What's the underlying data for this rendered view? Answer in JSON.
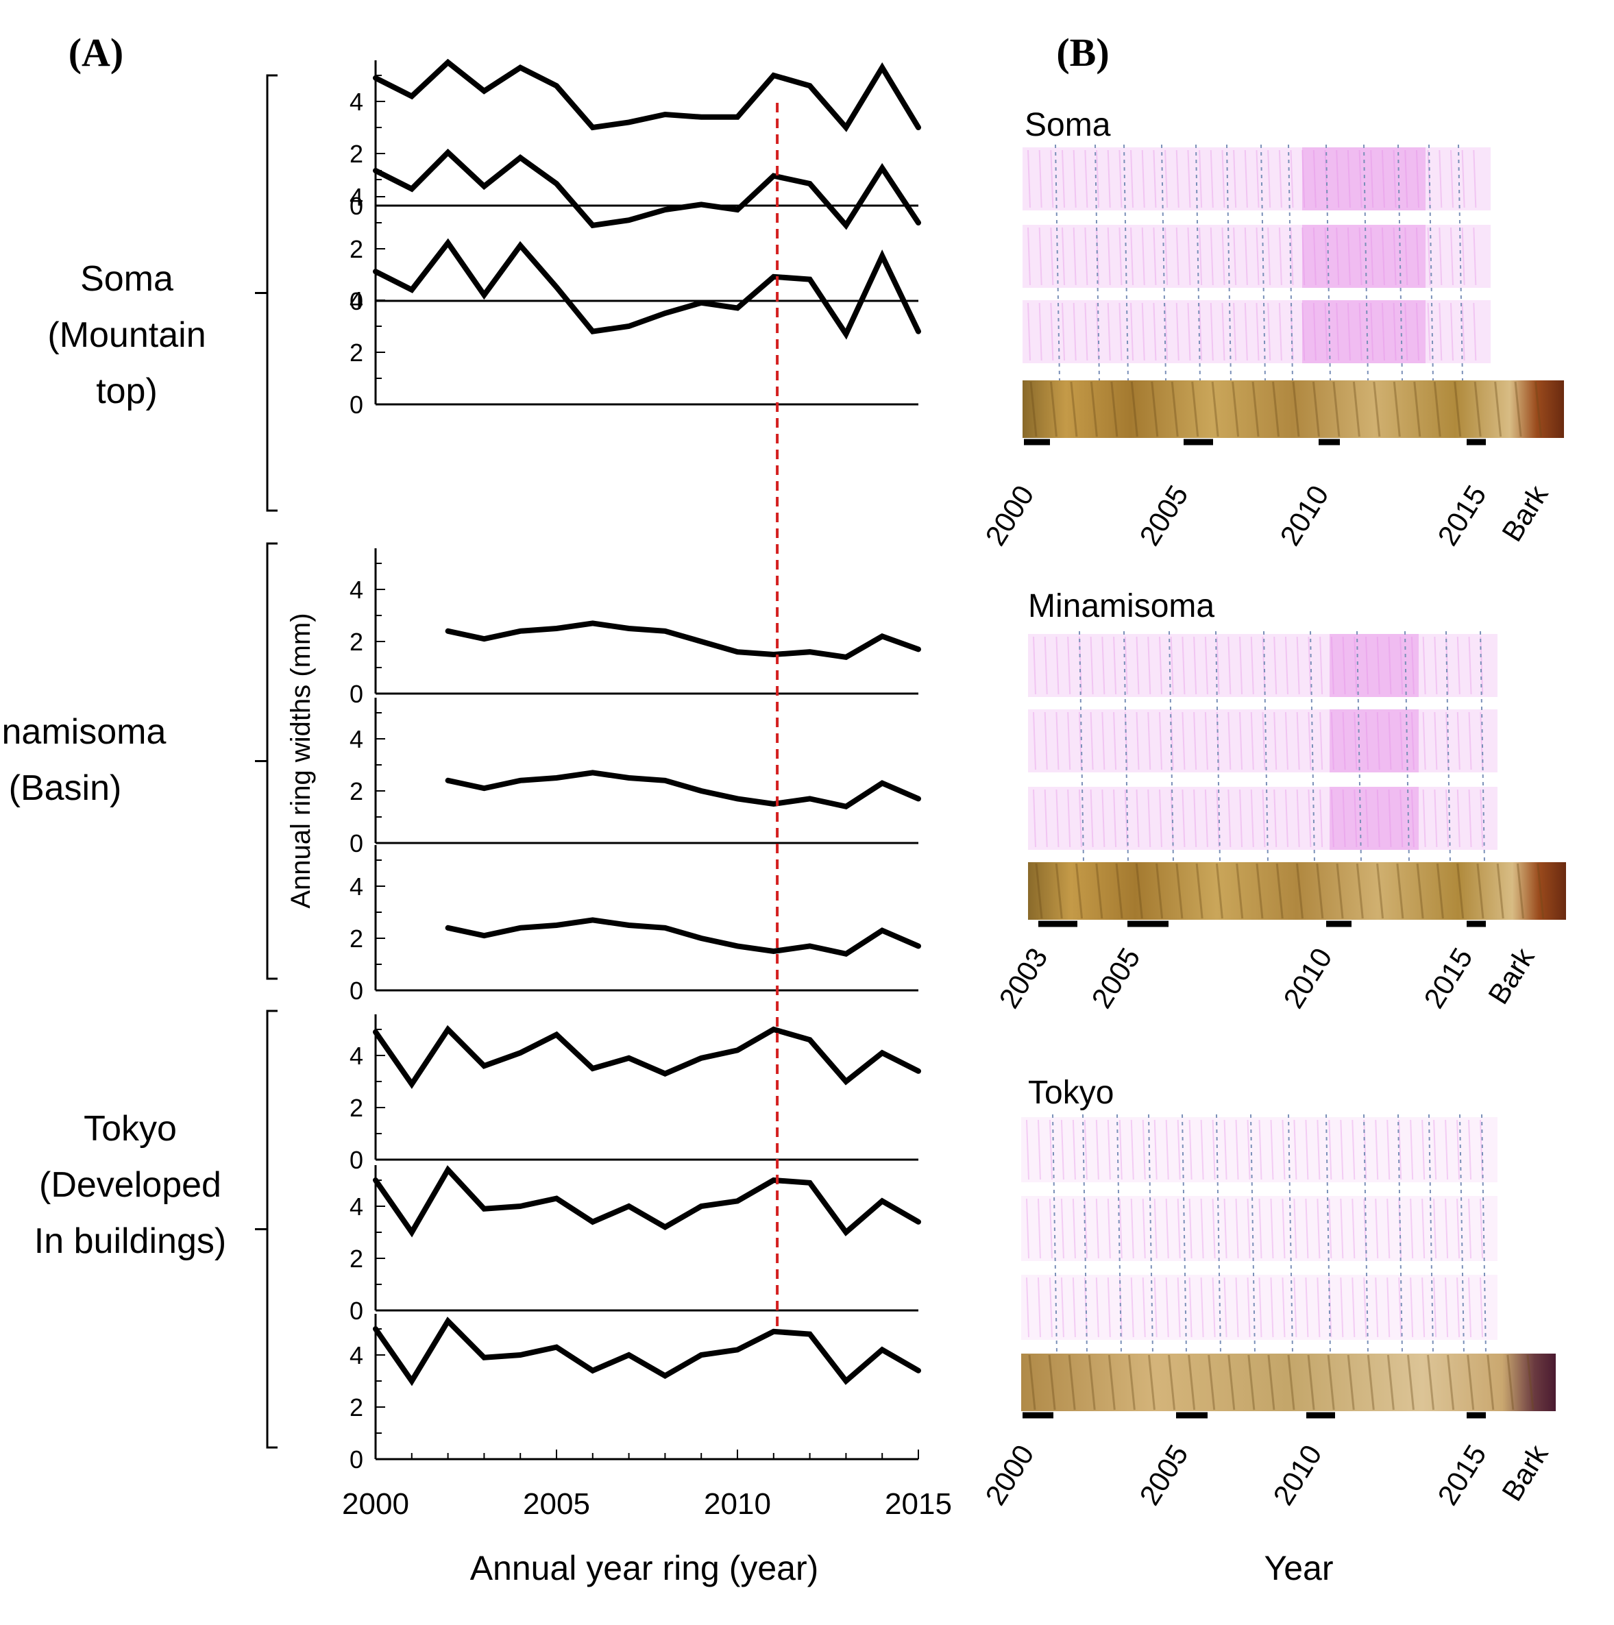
{
  "panel_a": {
    "label": "(A)",
    "xlabel": "Annual year ring (year)",
    "ylabel": "Annual ring widths (mm)",
    "event_line_color": "#d42020",
    "event_year": 2011.1
  },
  "panel_b": {
    "label": "(B)",
    "xlabel": "Year",
    "stain_color": "#e48ae6",
    "sites": [
      {
        "name": "Soma",
        "tick_labels": [
          "2000",
          "2005",
          "2010",
          "2015",
          "Bark"
        ]
      },
      {
        "name": "Minamisoma",
        "tick_labels": [
          "2003",
          "2005",
          "2010",
          "2015",
          "Bark"
        ]
      },
      {
        "name": "Tokyo",
        "tick_labels": [
          "2000",
          "2005",
          "2010",
          "2015",
          "Bark"
        ]
      }
    ]
  },
  "chart_data": [
    {
      "type": "line",
      "title": "",
      "xlabel": "Annual year ring (year)",
      "ylabel": "Annual ring widths (mm)",
      "xlim": [
        2000,
        2015
      ],
      "ylim": [
        0,
        5
      ],
      "x_ticks": [
        "2000",
        "2005",
        "2010",
        "2015"
      ],
      "y_ticks": [
        "0",
        "2",
        "4"
      ],
      "groups": [
        {
          "label": "Soma\n(Mountain\ntop)",
          "series": [
            {
              "x": [
                2000,
                2001,
                2002,
                2003,
                2004,
                2005,
                2006,
                2007,
                2008,
                2009,
                2010,
                2011,
                2012,
                2013,
                2014,
                2015
              ],
              "y": [
                4.9,
                4.2,
                5.5,
                4.4,
                5.3,
                4.6,
                3.0,
                3.2,
                3.5,
                3.4,
                3.4,
                5.0,
                4.6,
                3.0,
                5.3,
                3.0
              ]
            },
            {
              "x": [
                2000,
                2001,
                2002,
                2003,
                2004,
                2005,
                2006,
                2007,
                2008,
                2009,
                2010,
                2011,
                2012,
                2013,
                2014,
                2015
              ],
              "y": [
                5.0,
                4.3,
                5.7,
                4.4,
                5.5,
                4.5,
                2.9,
                3.1,
                3.5,
                3.7,
                3.5,
                4.8,
                4.5,
                2.9,
                5.1,
                3.0
              ]
            },
            {
              "x": [
                2000,
                2001,
                2002,
                2003,
                2004,
                2005,
                2006,
                2007,
                2008,
                2009,
                2010,
                2011,
                2012,
                2013,
                2014,
                2015
              ],
              "y": [
                5.1,
                4.4,
                6.2,
                4.2,
                6.1,
                4.5,
                2.8,
                3.0,
                3.5,
                3.9,
                3.7,
                4.9,
                4.8,
                2.7,
                5.7,
                2.8
              ]
            }
          ]
        },
        {
          "label": "Minamisoma\n(Basin)",
          "series": [
            {
              "x": [
                2002,
                2003,
                2004,
                2005,
                2006,
                2007,
                2008,
                2009,
                2010,
                2011,
                2012,
                2013,
                2014,
                2015
              ],
              "y": [
                2.4,
                2.1,
                2.4,
                2.5,
                2.7,
                2.5,
                2.4,
                2.0,
                1.6,
                1.5,
                1.6,
                1.4,
                2.2,
                1.7
              ]
            },
            {
              "x": [
                2002,
                2003,
                2004,
                2005,
                2006,
                2007,
                2008,
                2009,
                2010,
                2011,
                2012,
                2013,
                2014,
                2015
              ],
              "y": [
                2.4,
                2.1,
                2.4,
                2.5,
                2.7,
                2.5,
                2.4,
                2.0,
                1.7,
                1.5,
                1.7,
                1.4,
                2.3,
                1.7
              ]
            },
            {
              "x": [
                2002,
                2003,
                2004,
                2005,
                2006,
                2007,
                2008,
                2009,
                2010,
                2011,
                2012,
                2013,
                2014,
                2015
              ],
              "y": [
                2.4,
                2.1,
                2.4,
                2.5,
                2.7,
                2.5,
                2.4,
                2.0,
                1.7,
                1.5,
                1.7,
                1.4,
                2.3,
                1.7
              ]
            }
          ]
        },
        {
          "label": "Tokyo\n(Developed\nIn buildings)",
          "series": [
            {
              "x": [
                2000,
                2001,
                2002,
                2003,
                2004,
                2005,
                2006,
                2007,
                2008,
                2009,
                2010,
                2011,
                2012,
                2013,
                2014,
                2015
              ],
              "y": [
                4.9,
                2.9,
                5.0,
                3.6,
                4.1,
                4.8,
                3.5,
                3.9,
                3.3,
                3.9,
                4.2,
                5.0,
                4.6,
                3.0,
                4.1,
                3.4
              ]
            },
            {
              "x": [
                2000,
                2001,
                2002,
                2003,
                2004,
                2005,
                2006,
                2007,
                2008,
                2009,
                2010,
                2011,
                2012,
                2013,
                2014,
                2015
              ],
              "y": [
                5.0,
                3.0,
                5.4,
                3.9,
                4.0,
                4.3,
                3.4,
                4.0,
                3.2,
                4.0,
                4.2,
                5.0,
                4.9,
                3.0,
                4.2,
                3.4
              ]
            },
            {
              "x": [
                2000,
                2001,
                2002,
                2003,
                2004,
                2005,
                2006,
                2007,
                2008,
                2009,
                2010,
                2011,
                2012,
                2013,
                2014,
                2015
              ],
              "y": [
                5.0,
                3.0,
                5.3,
                3.9,
                4.0,
                4.3,
                3.4,
                4.0,
                3.2,
                4.0,
                4.2,
                4.9,
                4.8,
                3.0,
                4.2,
                3.4
              ]
            }
          ]
        }
      ]
    }
  ]
}
